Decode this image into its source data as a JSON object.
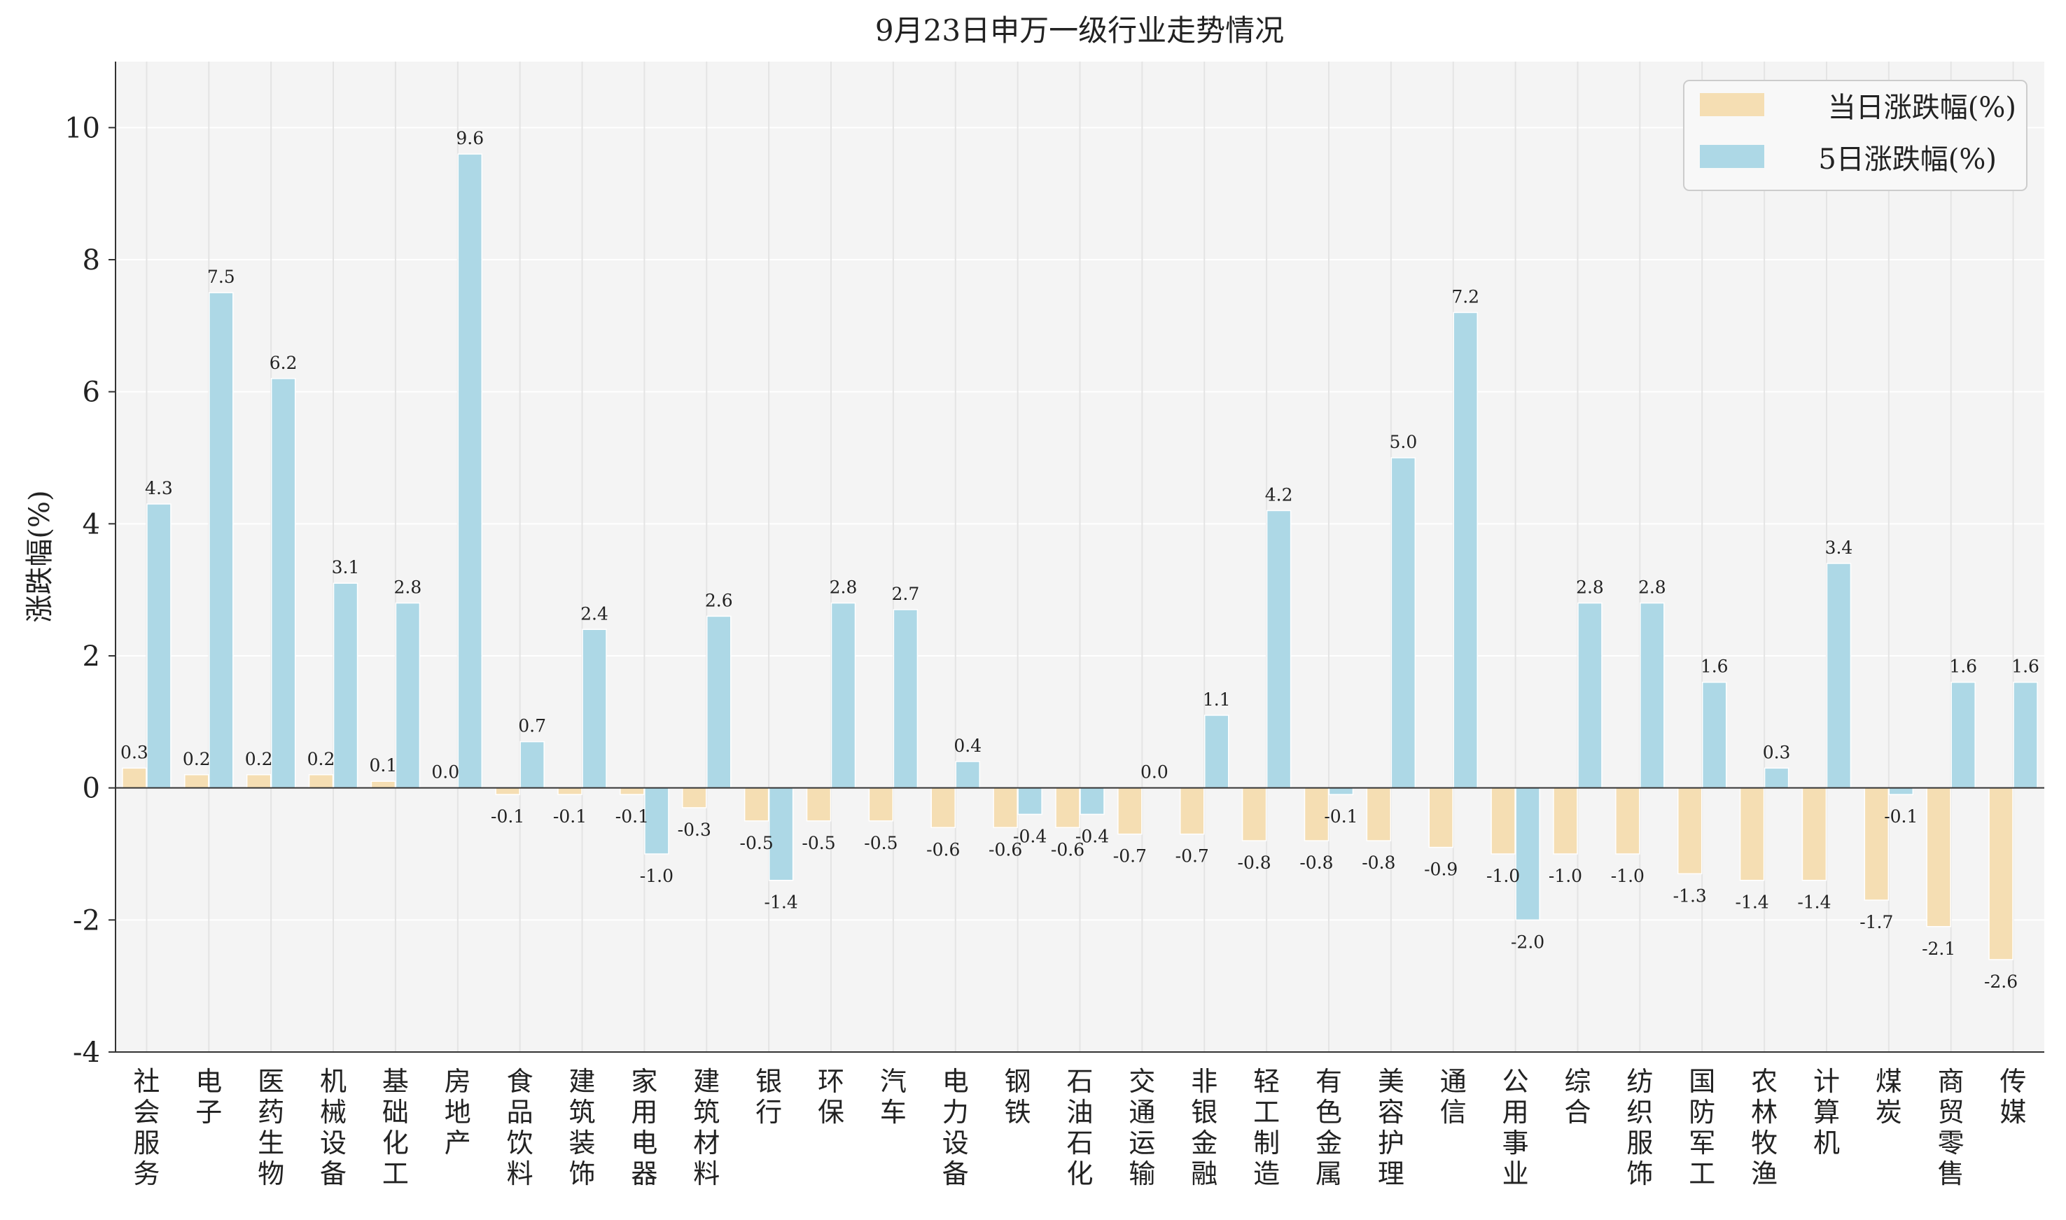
{
  "chart_data": {
    "type": "bar",
    "title": "9月23日申万一级行业走势情况",
    "xlabel": "",
    "ylabel": "涨跌幅(%)",
    "ylim": [
      -4,
      11
    ],
    "yticks": [
      -4,
      -2,
      0,
      2,
      4,
      6,
      8,
      10
    ],
    "grid": true,
    "legend_position": "top-right",
    "categories": [
      "社会服务",
      "电子",
      "医药生物",
      "机械设备",
      "基础化工",
      "房地产",
      "食品饮料",
      "建筑装饰",
      "家用电器",
      "建筑材料",
      "银行",
      "环保",
      "汽车",
      "电力设备",
      "钢铁",
      "石油石化",
      "交通运输",
      "非银金融",
      "轻工制造",
      "有色金属",
      "美容护理",
      "通信",
      "公用事业",
      "综合",
      "纺织服饰",
      "国防军工",
      "农林牧渔",
      "计算机",
      "煤炭",
      "商贸零售",
      "传媒"
    ],
    "series": [
      {
        "name": "当日涨跌幅(%)",
        "color": "#f5deb3",
        "values": [
          0.3,
          0.2,
          0.2,
          0.2,
          0.1,
          0.0,
          -0.1,
          -0.1,
          -0.1,
          -0.3,
          -0.5,
          -0.5,
          -0.5,
          -0.6,
          -0.6,
          -0.6,
          -0.7,
          -0.7,
          -0.8,
          -0.8,
          -0.8,
          -0.9,
          -1.0,
          -1.0,
          -1.0,
          -1.3,
          -1.4,
          -1.4,
          -1.7,
          -2.1,
          -2.6
        ],
        "labels": [
          "0.3",
          "0.2",
          "0.2",
          "0.2",
          "0.1",
          "0.0",
          "-0.1",
          "-0.1",
          "-0.1",
          "-0.3",
          "-0.5",
          "-0.5",
          "-0.5",
          "-0.6",
          "-0.6",
          "-0.6",
          "-0.7",
          "-0.7",
          "-0.8",
          "-0.8",
          "-0.8",
          "-0.9",
          "-1.0",
          "-1.0",
          "-1.0",
          "-1.3",
          "-1.4",
          "-1.4",
          "-1.7",
          "-2.1",
          "-2.6"
        ]
      },
      {
        "name": "5日涨跌幅(%)",
        "color": "#add8e6",
        "values": [
          4.3,
          7.5,
          6.2,
          3.1,
          2.8,
          9.6,
          0.7,
          2.4,
          -1.0,
          2.6,
          -1.4,
          2.8,
          2.7,
          0.4,
          -0.4,
          -0.4,
          0.0,
          1.1,
          4.2,
          -0.1,
          5.0,
          7.2,
          -2.0,
          2.8,
          2.8,
          1.6,
          0.3,
          3.4,
          -0.1,
          1.6,
          1.6
        ],
        "labels": [
          "4.3",
          "7.5",
          "6.2",
          "3.1",
          "2.8",
          "9.6",
          "0.7",
          "2.4",
          "-1.0",
          "2.6",
          "-1.4",
          "2.8",
          "2.7",
          "0.4",
          "-0.4",
          "-0.4",
          "0.0",
          "1.1",
          "4.2",
          "-0.1",
          "5.0",
          "7.2",
          "-2.0",
          "2.8",
          "2.8",
          "1.6",
          "0.3",
          "3.4",
          "-0.1",
          "1.6",
          "1.6"
        ]
      }
    ]
  }
}
